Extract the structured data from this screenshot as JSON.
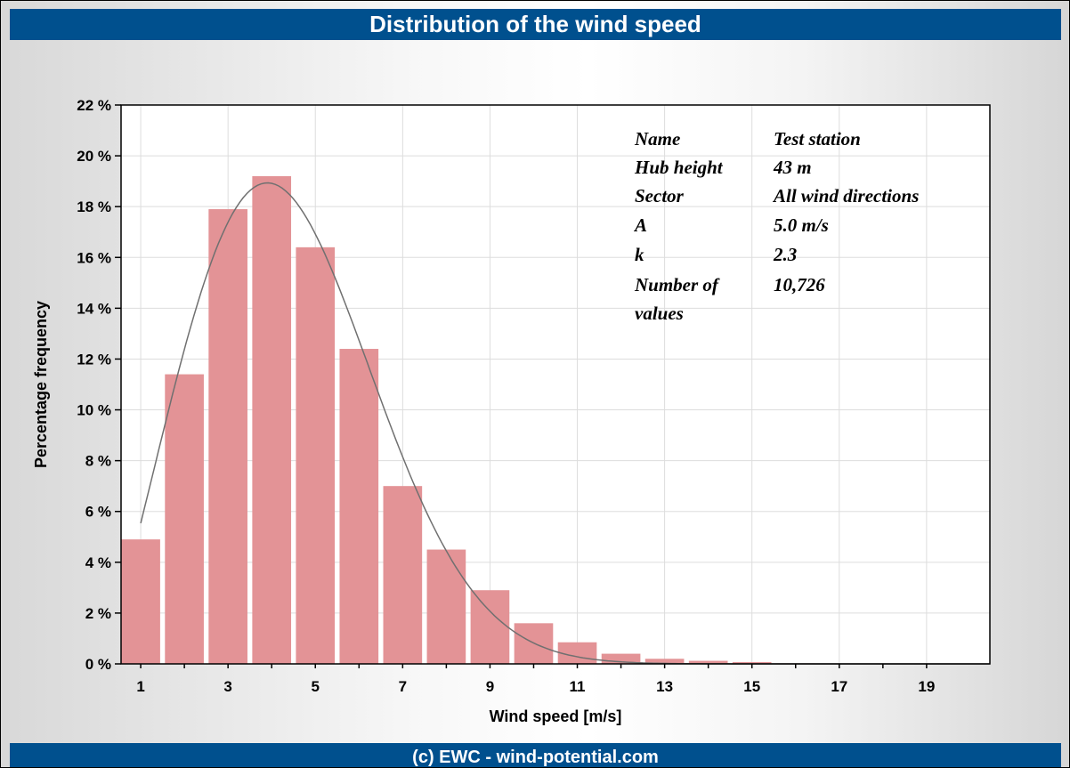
{
  "header": {
    "title": "Distribution of the wind speed"
  },
  "footer": {
    "text": "(c) EWC - wind-potential.com"
  },
  "info": [
    {
      "label": "Name",
      "value": "Test station"
    },
    {
      "label": "Hub height",
      "value": "43 m"
    },
    {
      "label": "Sector",
      "value": "All wind directions"
    },
    {
      "label": "A",
      "value": "5.0 m/s"
    },
    {
      "label": "k",
      "value": "2.3"
    },
    {
      "label": "Number of values",
      "value": "10,726"
    }
  ],
  "colors": {
    "header_bg": "#00508e",
    "bar": "#e39396",
    "curve": "#707070"
  },
  "chart_data": {
    "type": "bar",
    "title": "Distribution of the wind speed",
    "xlabel": "Wind speed [m/s]",
    "ylabel": "Percentage frequency",
    "categories": [
      1,
      2,
      3,
      4,
      5,
      6,
      7,
      8,
      9,
      10,
      11,
      12,
      13,
      14,
      15,
      16,
      17,
      18,
      19
    ],
    "values": [
      4.9,
      11.4,
      17.9,
      19.2,
      16.4,
      12.4,
      7.0,
      4.5,
      2.9,
      1.6,
      0.85,
      0.4,
      0.2,
      0.12,
      0.07,
      0.02,
      0.01,
      0.0,
      0.0
    ],
    "ylim": [
      0,
      22
    ],
    "xlim": [
      0.55,
      20.45
    ],
    "xticks": [
      1,
      3,
      5,
      7,
      9,
      11,
      13,
      15,
      17,
      19
    ],
    "yticks": [
      0,
      2,
      4,
      6,
      8,
      10,
      12,
      14,
      16,
      18,
      20,
      22
    ],
    "ytick_labels": [
      "0 %",
      "2 %",
      "4 %",
      "6 %",
      "8 %",
      "10 %",
      "12 %",
      "14 %",
      "16 %",
      "18 %",
      "20 %",
      "22 %"
    ],
    "grid": true,
    "weibull_fit": {
      "A": 5.0,
      "k": 2.3,
      "x_start": 1,
      "x_end": 20.45
    }
  }
}
